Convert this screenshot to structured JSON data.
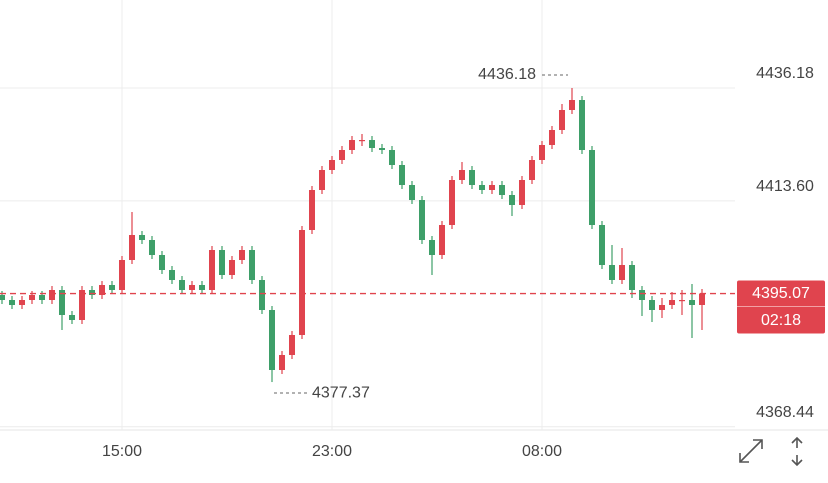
{
  "chart_data": {
    "type": "candlestick",
    "categories": [
      null,
      null,
      null,
      null,
      null,
      null,
      null,
      null,
      null,
      null,
      null,
      null,
      "15:00",
      null,
      null,
      null,
      null,
      null,
      null,
      null,
      null,
      null,
      null,
      null,
      null,
      null,
      null,
      null,
      null,
      null,
      null,
      null,
      null,
      "23:00",
      null,
      null,
      null,
      null,
      null,
      null,
      null,
      null,
      null,
      null,
      null,
      null,
      null,
      null,
      null,
      null,
      null,
      null,
      null,
      null,
      "08:00",
      null,
      null,
      null,
      null,
      null,
      null,
      null,
      null,
      null,
      null,
      null,
      null,
      null,
      null,
      null,
      null
    ],
    "open": [
      4394.78,
      4393.78,
      4392.78,
      4393.78,
      4394.78,
      4393.78,
      4395.78,
      4390.78,
      4389.78,
      4395.78,
      4394.78,
      4396.78,
      4395.78,
      4401.78,
      4406.78,
      4405.78,
      4402.78,
      4399.78,
      4397.78,
      4395.78,
      4396.78,
      4395.78,
      4403.78,
      4398.78,
      4401.78,
      4403.78,
      4397.78,
      4391.78,
      4379.78,
      4382.78,
      4386.78,
      4407.78,
      4415.78,
      4419.78,
      4421.78,
      4423.78,
      4425.78,
      4425.78,
      4424.18,
      4423.78,
      4420.78,
      4416.78,
      4413.78,
      4405.78,
      4402.78,
      4408.78,
      4417.78,
      4419.78,
      4416.78,
      4415.78,
      4416.78,
      4414.78,
      4412.78,
      4417.78,
      4421.78,
      4424.78,
      4427.78,
      4431.78,
      4433.78,
      4423.78,
      4408.78,
      4400.78,
      4397.78,
      4400.78,
      4395.78,
      4393.78,
      4391.78,
      4392.78,
      4393.78,
      4393.78,
      4392.78
    ],
    "high": [
      4395.58,
      4394.58,
      4394.58,
      4395.58,
      4395.58,
      4396.58,
      4396.58,
      4391.58,
      4396.58,
      4396.58,
      4397.58,
      4397.58,
      4402.58,
      4411.38,
      4407.58,
      4406.58,
      4403.58,
      4400.58,
      4398.58,
      4397.58,
      4397.58,
      4404.58,
      4404.58,
      4402.58,
      4404.58,
      4404.58,
      4398.58,
      4392.58,
      4383.58,
      4387.58,
      4408.58,
      4416.58,
      4420.58,
      4422.58,
      4424.58,
      4426.58,
      4426.98,
      4426.58,
      4424.98,
      4424.58,
      4421.58,
      4417.58,
      4414.58,
      4406.58,
      4409.58,
      4418.58,
      4421.38,
      4420.58,
      4417.58,
      4417.58,
      4417.58,
      4415.58,
      4418.58,
      4422.58,
      4425.58,
      4428.58,
      4432.98,
      4436.18,
      4434.58,
      4424.58,
      4409.58,
      4404.78,
      4404.18,
      4401.58,
      4396.58,
      4394.58,
      4394.18,
      4395.38,
      4395.78,
      4396.98,
      4395.98
    ],
    "low": [
      4392.98,
      4391.98,
      4391.98,
      4392.98,
      4392.98,
      4392.98,
      4387.78,
      4388.98,
      4388.98,
      4393.98,
      4393.98,
      4394.98,
      4394.98,
      4400.98,
      4404.98,
      4401.98,
      4398.98,
      4396.98,
      4394.98,
      4394.98,
      4394.98,
      4394.98,
      4397.98,
      4397.98,
      4400.98,
      4396.98,
      4390.98,
      4377.37,
      4378.98,
      4381.98,
      4385.98,
      4406.98,
      4414.98,
      4418.98,
      4420.98,
      4422.98,
      4424.58,
      4423.38,
      4422.98,
      4419.98,
      4415.98,
      4412.98,
      4404.98,
      4398.78,
      4401.98,
      4407.98,
      4416.98,
      4415.98,
      4414.98,
      4414.98,
      4413.98,
      4410.58,
      4411.98,
      4416.98,
      4420.98,
      4423.98,
      4426.98,
      4430.98,
      4422.98,
      4407.98,
      4399.98,
      4396.98,
      4396.98,
      4394.18,
      4390.58,
      4389.38,
      4390.18,
      4391.98,
      4390.78,
      4386.18,
      4387.78
    ],
    "close": [
      4393.78,
      4392.78,
      4393.78,
      4394.78,
      4393.78,
      4395.78,
      4390.78,
      4389.78,
      4395.78,
      4394.78,
      4396.78,
      4395.78,
      4401.78,
      4406.78,
      4405.78,
      4402.78,
      4399.78,
      4397.78,
      4395.78,
      4396.78,
      4395.78,
      4403.78,
      4398.78,
      4401.78,
      4403.78,
      4397.78,
      4391.78,
      4379.78,
      4382.78,
      4386.78,
      4407.78,
      4415.78,
      4419.78,
      4421.78,
      4423.78,
      4425.78,
      4425.78,
      4424.18,
      4423.78,
      4420.78,
      4416.78,
      4413.78,
      4405.78,
      4402.78,
      4408.78,
      4417.78,
      4419.78,
      4416.78,
      4415.78,
      4416.78,
      4414.78,
      4412.78,
      4417.78,
      4421.78,
      4424.78,
      4427.78,
      4431.78,
      4433.78,
      4423.78,
      4408.78,
      4400.78,
      4397.78,
      4400.78,
      4395.78,
      4393.78,
      4391.78,
      4392.78,
      4393.78,
      4393.78,
      4392.78,
      4395.07
    ],
    "up_color": "#e0444e",
    "down_color": "#3e9f69",
    "ylim": [
      4367.78,
      4453.78
    ],
    "yticks": [
      4368.44,
      {
        "value": 4413.6,
        "label": "4413.60"
      },
      4436.18
    ],
    "grid": true,
    "countdown": "02:18"
  }
}
